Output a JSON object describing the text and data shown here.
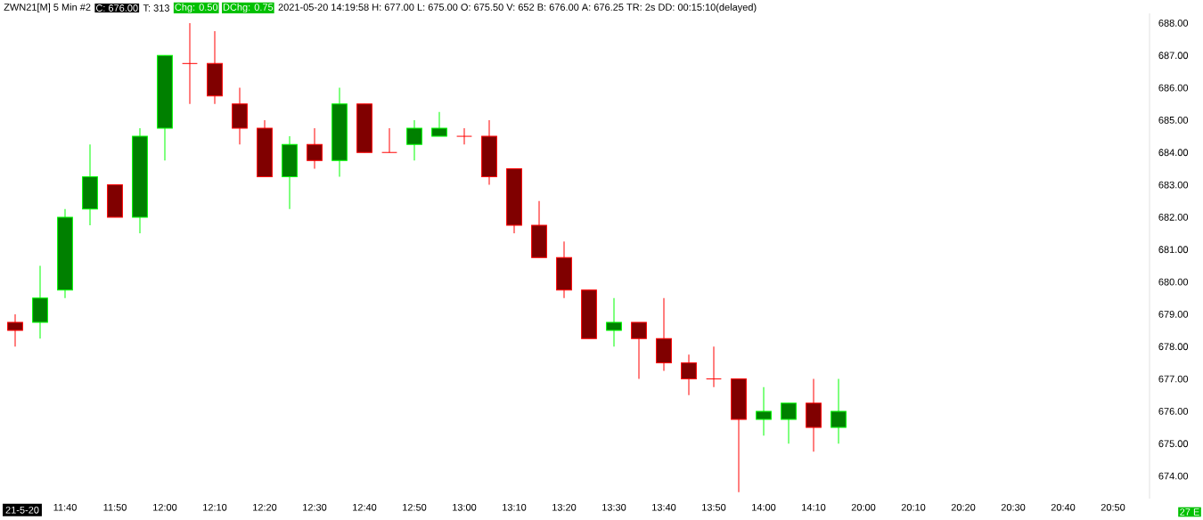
{
  "chart_data": {
    "type": "candlestick",
    "title": "ZWN21[M]  5 Min  #2",
    "annotations": [
      "C: 676.00",
      "T: 313",
      "Chg: 0.50",
      "DChg: 0.75",
      "2021-05-20 14:19:58 H: 677.00 L: 675.00 O: 675.50 V: 652 B: 676.00 A: 676.25 TR: 2s DD: 00:15:10(delayed)",
      "27 E"
    ],
    "categories": [
      "21-5-20",
      null,
      "11:40",
      null,
      "11:50",
      null,
      "12:00",
      null,
      "12:10",
      null,
      "12:20",
      null,
      "12:30",
      null,
      "12:40",
      null,
      "12:50",
      null,
      "13:00",
      null,
      "13:10",
      null,
      "13:20",
      null,
      "13:30",
      null,
      "13:40",
      null,
      "13:50",
      null,
      "14:00",
      null,
      "14:10",
      null,
      "20:00",
      null,
      "20:10",
      null,
      "20:20",
      null,
      "20:30",
      null,
      "20:40",
      null,
      "20:50",
      null
    ],
    "ohlc": [
      [
        678.75,
        679,
        678,
        678.5
      ],
      [
        678.75,
        680.5,
        678.25,
        679.5
      ],
      [
        679.75,
        682.25,
        679.5,
        682
      ],
      [
        682.25,
        684.25,
        681.75,
        683.25
      ],
      [
        683,
        683,
        682,
        682
      ],
      [
        682,
        684.75,
        681.5,
        684.5
      ],
      [
        684.75,
        687,
        683.75,
        687
      ],
      [
        686.75,
        688,
        685.5,
        686.75
      ],
      [
        686.75,
        687.75,
        685.5,
        685.75
      ],
      [
        685.5,
        686,
        684.25,
        684.75
      ],
      [
        684.75,
        685,
        683.25,
        683.25
      ],
      [
        683.25,
        684.5,
        682.25,
        684.25
      ],
      [
        684.25,
        684.75,
        683.5,
        683.75
      ],
      [
        683.75,
        686,
        683.25,
        685.5
      ],
      [
        685.5,
        685.5,
        684,
        684
      ],
      [
        684,
        684.75,
        684,
        684
      ],
      [
        684.25,
        685,
        683.75,
        684.75
      ],
      [
        684.5,
        685.25,
        684.5,
        684.75
      ],
      [
        684.5,
        684.75,
        684.25,
        684.5
      ],
      [
        684.5,
        685,
        683,
        683.25
      ],
      [
        683.5,
        683.5,
        681.5,
        681.75
      ],
      [
        681.75,
        682.5,
        680.75,
        680.75
      ],
      [
        680.75,
        681.25,
        679.5,
        679.75
      ],
      [
        679.75,
        679.75,
        678.25,
        678.25
      ],
      [
        678.5,
        679.5,
        678,
        678.75
      ],
      [
        678.75,
        678.75,
        677,
        678.25
      ],
      [
        678.25,
        679.5,
        677.25,
        677.5
      ],
      [
        677.5,
        677.75,
        676.5,
        677
      ],
      [
        677,
        678,
        676.75,
        677
      ],
      [
        677,
        677,
        673.5,
        675.75
      ],
      [
        675.75,
        676.75,
        675.25,
        676
      ],
      [
        675.75,
        676.25,
        675,
        676.25
      ],
      [
        676.25,
        677,
        674.75,
        675.5
      ],
      [
        675.5,
        677,
        675,
        676
      ],
      null,
      null,
      null,
      null,
      null,
      null,
      null,
      null,
      null,
      null,
      null,
      null
    ],
    "colors": [
      "#800000",
      "#008000",
      "#008000",
      "#008000",
      "#800000",
      "#008000",
      "#008000",
      "#ff0000",
      "#800000",
      "#800000",
      "#800000",
      "#008000",
      "#800000",
      "#008000",
      "#800000",
      "#ff0000",
      "#008000",
      "#008000",
      "#ff0000",
      "#800000",
      "#800000",
      "#800000",
      "#800000",
      "#800000",
      "#008000",
      "#800000",
      "#800000",
      "#800000",
      "#ff0000",
      "#800000",
      "#008000",
      "#008000",
      "#800000",
      "#008000",
      null,
      null,
      null,
      null,
      null,
      null,
      null,
      null,
      null,
      null,
      null,
      null
    ],
    "ylim": [
      673.3,
      688.3
    ],
    "yticks": [
      {
        "value": 674,
        "label": "674.00"
      },
      {
        "value": 675,
        "label": "675.00"
      },
      {
        "value": 676,
        "label": "676.00"
      },
      {
        "value": 677,
        "label": "677.00"
      },
      {
        "value": 678,
        "label": "678.00"
      },
      {
        "value": 679,
        "label": "679.00"
      },
      {
        "value": 680,
        "label": "680.00"
      },
      {
        "value": 681,
        "label": "681.00"
      },
      {
        "value": 682,
        "label": "682.00"
      },
      {
        "value": 683,
        "label": "683.00"
      },
      {
        "value": 684,
        "label": "684.00"
      },
      {
        "value": 685,
        "label": "685.00"
      },
      {
        "value": 686,
        "label": "686.00"
      },
      {
        "value": 687,
        "label": "687.00"
      },
      {
        "value": 688,
        "label": "688.00"
      }
    ]
  }
}
